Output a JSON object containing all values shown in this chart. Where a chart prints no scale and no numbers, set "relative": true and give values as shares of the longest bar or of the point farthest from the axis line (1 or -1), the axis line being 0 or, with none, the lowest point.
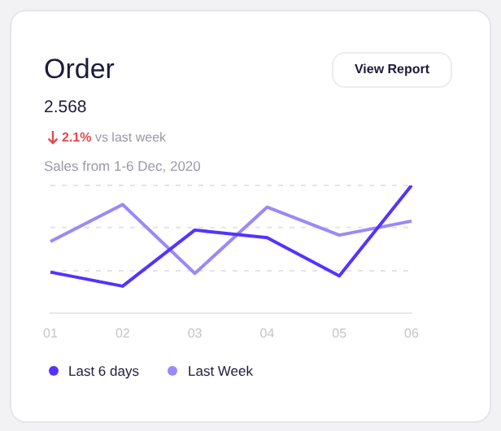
{
  "chart_data": {
    "type": "line",
    "title": "Order",
    "subtitle": "2.568",
    "annotations": [
      "2.1%",
      "vs last week",
      "Sales from 1-6 Dec, 2020",
      "View Report"
    ],
    "categories": [
      "01",
      "02",
      "03",
      "04",
      "05",
      "06"
    ],
    "relative": true,
    "legend": "bottom left",
    "marker": "none",
    "line_style": "solid",
    "ref_lines": [
      {
        "axis": "y",
        "value": 0.33,
        "color": "#e4e4ea",
        "line_style": "dashed"
      },
      {
        "axis": "y",
        "value": 0.67,
        "color": "#e4e4ea",
        "line_style": "dashed"
      },
      {
        "axis": "y",
        "value": 1,
        "color": "#e4e4ea",
        "line_style": "dashed"
      }
    ],
    "series": [
      {
        "name": "Last 6 days",
        "color": "#5433ff",
        "values": [
          0.32,
          0.21,
          0.65,
          0.59,
          0.29,
          1.0
        ]
      },
      {
        "name": "Last Week",
        "color": "#9c87fa",
        "values": [
          0.56,
          0.85,
          0.31,
          0.83,
          0.61,
          0.72
        ]
      }
    ]
  }
}
